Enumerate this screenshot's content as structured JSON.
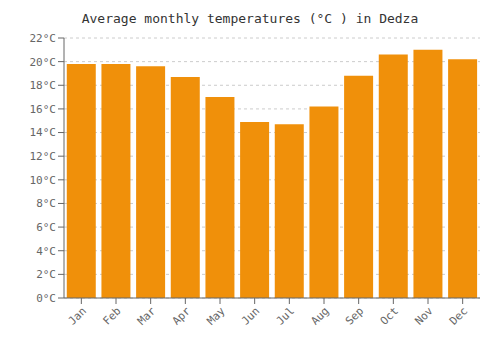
{
  "chart_data": {
    "type": "bar",
    "title": "Average monthly temperatures (°C ) in Dedza",
    "categories": [
      "Jan",
      "Feb",
      "Mar",
      "Apr",
      "May",
      "Jun",
      "Jul",
      "Aug",
      "Sep",
      "Oct",
      "Nov",
      "Dec"
    ],
    "values": [
      19.8,
      19.8,
      19.6,
      18.7,
      17.0,
      14.9,
      14.7,
      16.2,
      18.8,
      20.6,
      21.0,
      20.2
    ],
    "color": "#F0900A",
    "ylim": [
      0,
      22
    ],
    "yticks": [
      {
        "value": 0,
        "label": "0°C"
      },
      {
        "value": 2,
        "label": "2°C"
      },
      {
        "value": 4,
        "label": "4°C"
      },
      {
        "value": 6,
        "label": "6°C"
      },
      {
        "value": 8,
        "label": "8°C"
      },
      {
        "value": 10,
        "label": "10°C"
      },
      {
        "value": 12,
        "label": "12°C"
      },
      {
        "value": 14,
        "label": "14°C"
      },
      {
        "value": 16,
        "label": "16°C"
      },
      {
        "value": 18,
        "label": "18°C"
      },
      {
        "value": 20,
        "label": "20°C"
      },
      {
        "value": 22,
        "label": "22°C"
      }
    ],
    "grid": true
  }
}
